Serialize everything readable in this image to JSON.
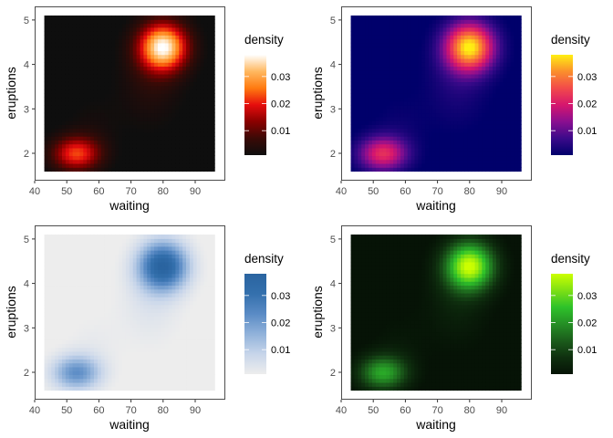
{
  "chart_data": [
    {
      "type": "heatmap",
      "xlabel": "waiting",
      "ylabel": "eruptions",
      "legend_title": "density",
      "legend_position": "right",
      "xlim": [
        40,
        99
      ],
      "ylim": [
        1.45,
        5.2
      ],
      "x_ticks": [
        "40",
        "50",
        "60",
        "70",
        "80",
        "90"
      ],
      "y_ticks": [
        "2",
        "3",
        "4",
        "5"
      ],
      "legend_ticks": [
        "0.01",
        "0.02",
        "0.03"
      ],
      "legend_range": [
        0.001,
        0.038
      ],
      "grid": false,
      "colors": [
        "#0e0e0e",
        "#3a0a06",
        "#8a0000",
        "#e60d0d",
        "#ff7a10",
        "#ffb860",
        "#ffffff"
      ],
      "peaks": [
        {
          "waiting": 80,
          "eruptions": 4.4,
          "density": 0.037
        },
        {
          "waiting": 53,
          "eruptions": 2.0,
          "density": 0.022
        }
      ]
    },
    {
      "type": "heatmap",
      "xlabel": "waiting",
      "ylabel": "eruptions",
      "legend_title": "density",
      "legend_position": "right",
      "xlim": [
        40,
        99
      ],
      "ylim": [
        1.45,
        5.2
      ],
      "x_ticks": [
        "40",
        "50",
        "60",
        "70",
        "80",
        "90"
      ],
      "y_ticks": [
        "2",
        "3",
        "4",
        "5"
      ],
      "legend_ticks": [
        "0.01",
        "0.02",
        "0.03"
      ],
      "legend_range": [
        0.001,
        0.038
      ],
      "grid": false,
      "colors": [
        "#00006b",
        "#3b0a8a",
        "#8a0f90",
        "#d6166e",
        "#f24a4a",
        "#fb8f2c",
        "#ffef12"
      ],
      "peaks": [
        {
          "waiting": 80,
          "eruptions": 4.4,
          "density": 0.037
        },
        {
          "waiting": 53,
          "eruptions": 2.0,
          "density": 0.022
        }
      ]
    },
    {
      "type": "heatmap",
      "xlabel": "waiting",
      "ylabel": "eruptions",
      "legend_title": "density",
      "legend_position": "right",
      "xlim": [
        40,
        99
      ],
      "ylim": [
        1.45,
        5.2
      ],
      "x_ticks": [
        "40",
        "50",
        "60",
        "70",
        "80",
        "90"
      ],
      "y_ticks": [
        "2",
        "3",
        "4",
        "5"
      ],
      "legend_ticks": [
        "0.01",
        "0.02",
        "0.03"
      ],
      "legend_range": [
        0.001,
        0.038
      ],
      "grid": false,
      "colors": [
        "#ededed",
        "#c7d5ea",
        "#91b2da",
        "#5a8bc5",
        "#3470ad",
        "#2a64a0"
      ],
      "peaks": [
        {
          "waiting": 80,
          "eruptions": 4.4,
          "density": 0.037
        },
        {
          "waiting": 53,
          "eruptions": 2.0,
          "density": 0.022
        }
      ]
    },
    {
      "type": "heatmap",
      "xlabel": "waiting",
      "ylabel": "eruptions",
      "legend_title": "density",
      "legend_position": "right",
      "xlim": [
        40,
        99
      ],
      "ylim": [
        1.45,
        5.2
      ],
      "x_ticks": [
        "40",
        "50",
        "60",
        "70",
        "80",
        "90"
      ],
      "y_ticks": [
        "2",
        "3",
        "4",
        "5"
      ],
      "legend_ticks": [
        "0.01",
        "0.02",
        "0.03"
      ],
      "legend_range": [
        0.001,
        0.038
      ],
      "grid": false,
      "colors": [
        "#061306",
        "#0f300f",
        "#1b5c1b",
        "#258f25",
        "#2ec22a",
        "#7ee014",
        "#ccff00"
      ],
      "peaks": [
        {
          "waiting": 80,
          "eruptions": 4.4,
          "density": 0.037
        },
        {
          "waiting": 53,
          "eruptions": 2.0,
          "density": 0.022
        }
      ]
    }
  ]
}
